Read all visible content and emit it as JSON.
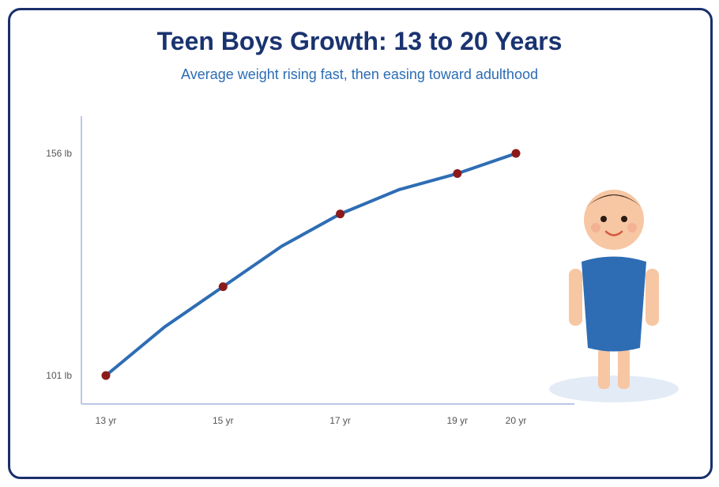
{
  "colors": {
    "border": "#1a2f6b",
    "title": "#1a3370",
    "subtitle": "#2b6cb5",
    "line": "#2e6db4",
    "marker": "#8b1a1a",
    "axis": "#b8c8e6",
    "shirt": "#2e6db4",
    "skin": "#f7c6a3"
  },
  "chart_data": {
    "type": "line",
    "title": "Teen Boys Growth: 13 to 20 Years",
    "subtitle": "Average weight rising fast, then easing toward adulthood",
    "xlabel": "",
    "ylabel": "",
    "x": [
      13,
      14,
      15,
      16,
      17,
      18,
      19,
      20
    ],
    "values": [
      101,
      113,
      123,
      133,
      141,
      147,
      151,
      156
    ],
    "marked_x": [
      13,
      15,
      17,
      19,
      20
    ],
    "x_tick_labels": [
      {
        "x": 13,
        "label": "13 yr"
      },
      {
        "x": 15,
        "label": "15 yr"
      },
      {
        "x": 17,
        "label": "17 yr"
      },
      {
        "x": 19,
        "label": "19 yr"
      },
      {
        "x": 20,
        "label": "20 yr"
      }
    ],
    "y_tick_labels": [
      {
        "y": 101,
        "label": "101 lb"
      },
      {
        "y": 156,
        "label": "156 lb"
      }
    ],
    "ylim": [
      101,
      156
    ],
    "grid": false,
    "legend": "none"
  },
  "illustration": {
    "icon": "teen-boy-figure"
  }
}
